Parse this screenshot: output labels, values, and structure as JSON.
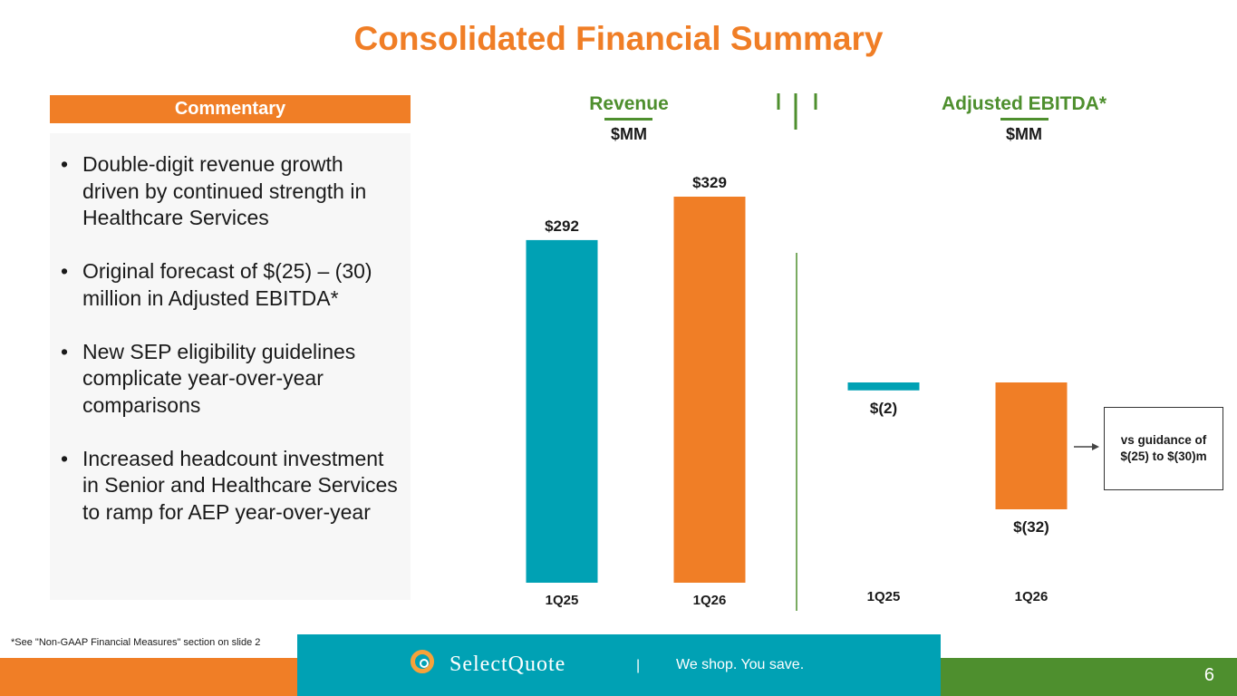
{
  "title": "Consolidated Financial Summary",
  "commentary": {
    "header": "Commentary",
    "bullets": [
      "Double-digit revenue growth driven by continued strength in Healthcare Services",
      "Original forecast of $(25) – (30) million in Adjusted EBITDA*",
      "New SEP eligibility guidelines complicate year-over-year comparisons",
      "Increased headcount investment in Senior and Healthcare Services to ramp for AEP year-over-year"
    ]
  },
  "revenue": {
    "heading": "Revenue",
    "unit": "$MM"
  },
  "ebitda": {
    "heading": "Adjusted EBITDA*",
    "unit": "$MM"
  },
  "callout": "vs guidance of $(25) to $(30)m",
  "footnote": "*See \"Non-GAAP Financial Measures\" section on slide 2",
  "footer": {
    "brand": "SelectQuote",
    "separator": "|",
    "tagline": "We shop. You save.",
    "page_number": "6"
  },
  "colors": {
    "teal": "#00a1b4",
    "orange": "#f07e26",
    "green": "#4e8f2e"
  },
  "chart_data": [
    {
      "type": "bar",
      "title": "Revenue",
      "ylabel": "$MM",
      "categories": [
        "1Q25",
        "1Q26"
      ],
      "values": [
        292,
        329
      ],
      "labels": [
        "$292",
        "$329"
      ],
      "colors": [
        "#00a1b4",
        "#f07e26"
      ],
      "ylim": [
        0,
        329
      ]
    },
    {
      "type": "bar",
      "title": "Adjusted EBITDA*",
      "ylabel": "$MM",
      "categories": [
        "1Q25",
        "1Q26"
      ],
      "values": [
        -2,
        -32
      ],
      "labels": [
        "$(2)",
        "$(32)"
      ],
      "colors": [
        "#00a1b4",
        "#f07e26"
      ],
      "ylim": [
        -32,
        0
      ]
    }
  ]
}
